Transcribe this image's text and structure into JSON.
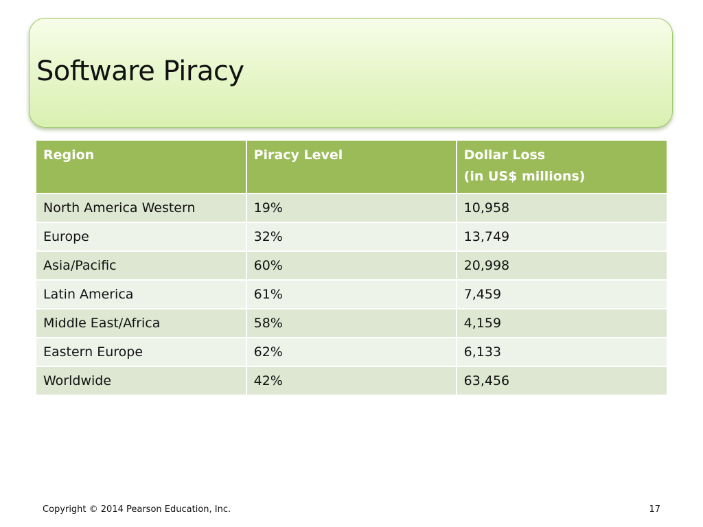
{
  "slide": {
    "title": "Software Piracy",
    "footer_copyright": "Copyright © 2014 Pearson Education, Inc.",
    "page_number": "17"
  },
  "table": {
    "headers": {
      "region": "Region",
      "piracy_level": "Piracy Level",
      "dollar_loss_line1": "Dollar Loss",
      "dollar_loss_line2": "(in US$ millions)"
    },
    "rows": [
      {
        "region": "North America Western",
        "piracy_level": "19%",
        "dollar_loss": "10,958"
      },
      {
        "region": "Europe",
        "piracy_level": "32%",
        "dollar_loss": "13,749"
      },
      {
        "region": "Asia/Pacific",
        "piracy_level": "60%",
        "dollar_loss": "20,998"
      },
      {
        "region": "Latin America",
        "piracy_level": "61%",
        "dollar_loss": "7,459"
      },
      {
        "region": "Middle East/Africa",
        "piracy_level": "58%",
        "dollar_loss": "4,159"
      },
      {
        "region": "Eastern Europe",
        "piracy_level": "62%",
        "dollar_loss": "6,133"
      },
      {
        "region": "Worldwide",
        "piracy_level": "42%",
        "dollar_loss": "63,456"
      }
    ]
  },
  "colors": {
    "header_bg": "#9bbb59",
    "row_odd_bg": "#dde7d2",
    "row_even_bg": "#eef3ea",
    "title_box_bg": "#e9f7ce"
  }
}
